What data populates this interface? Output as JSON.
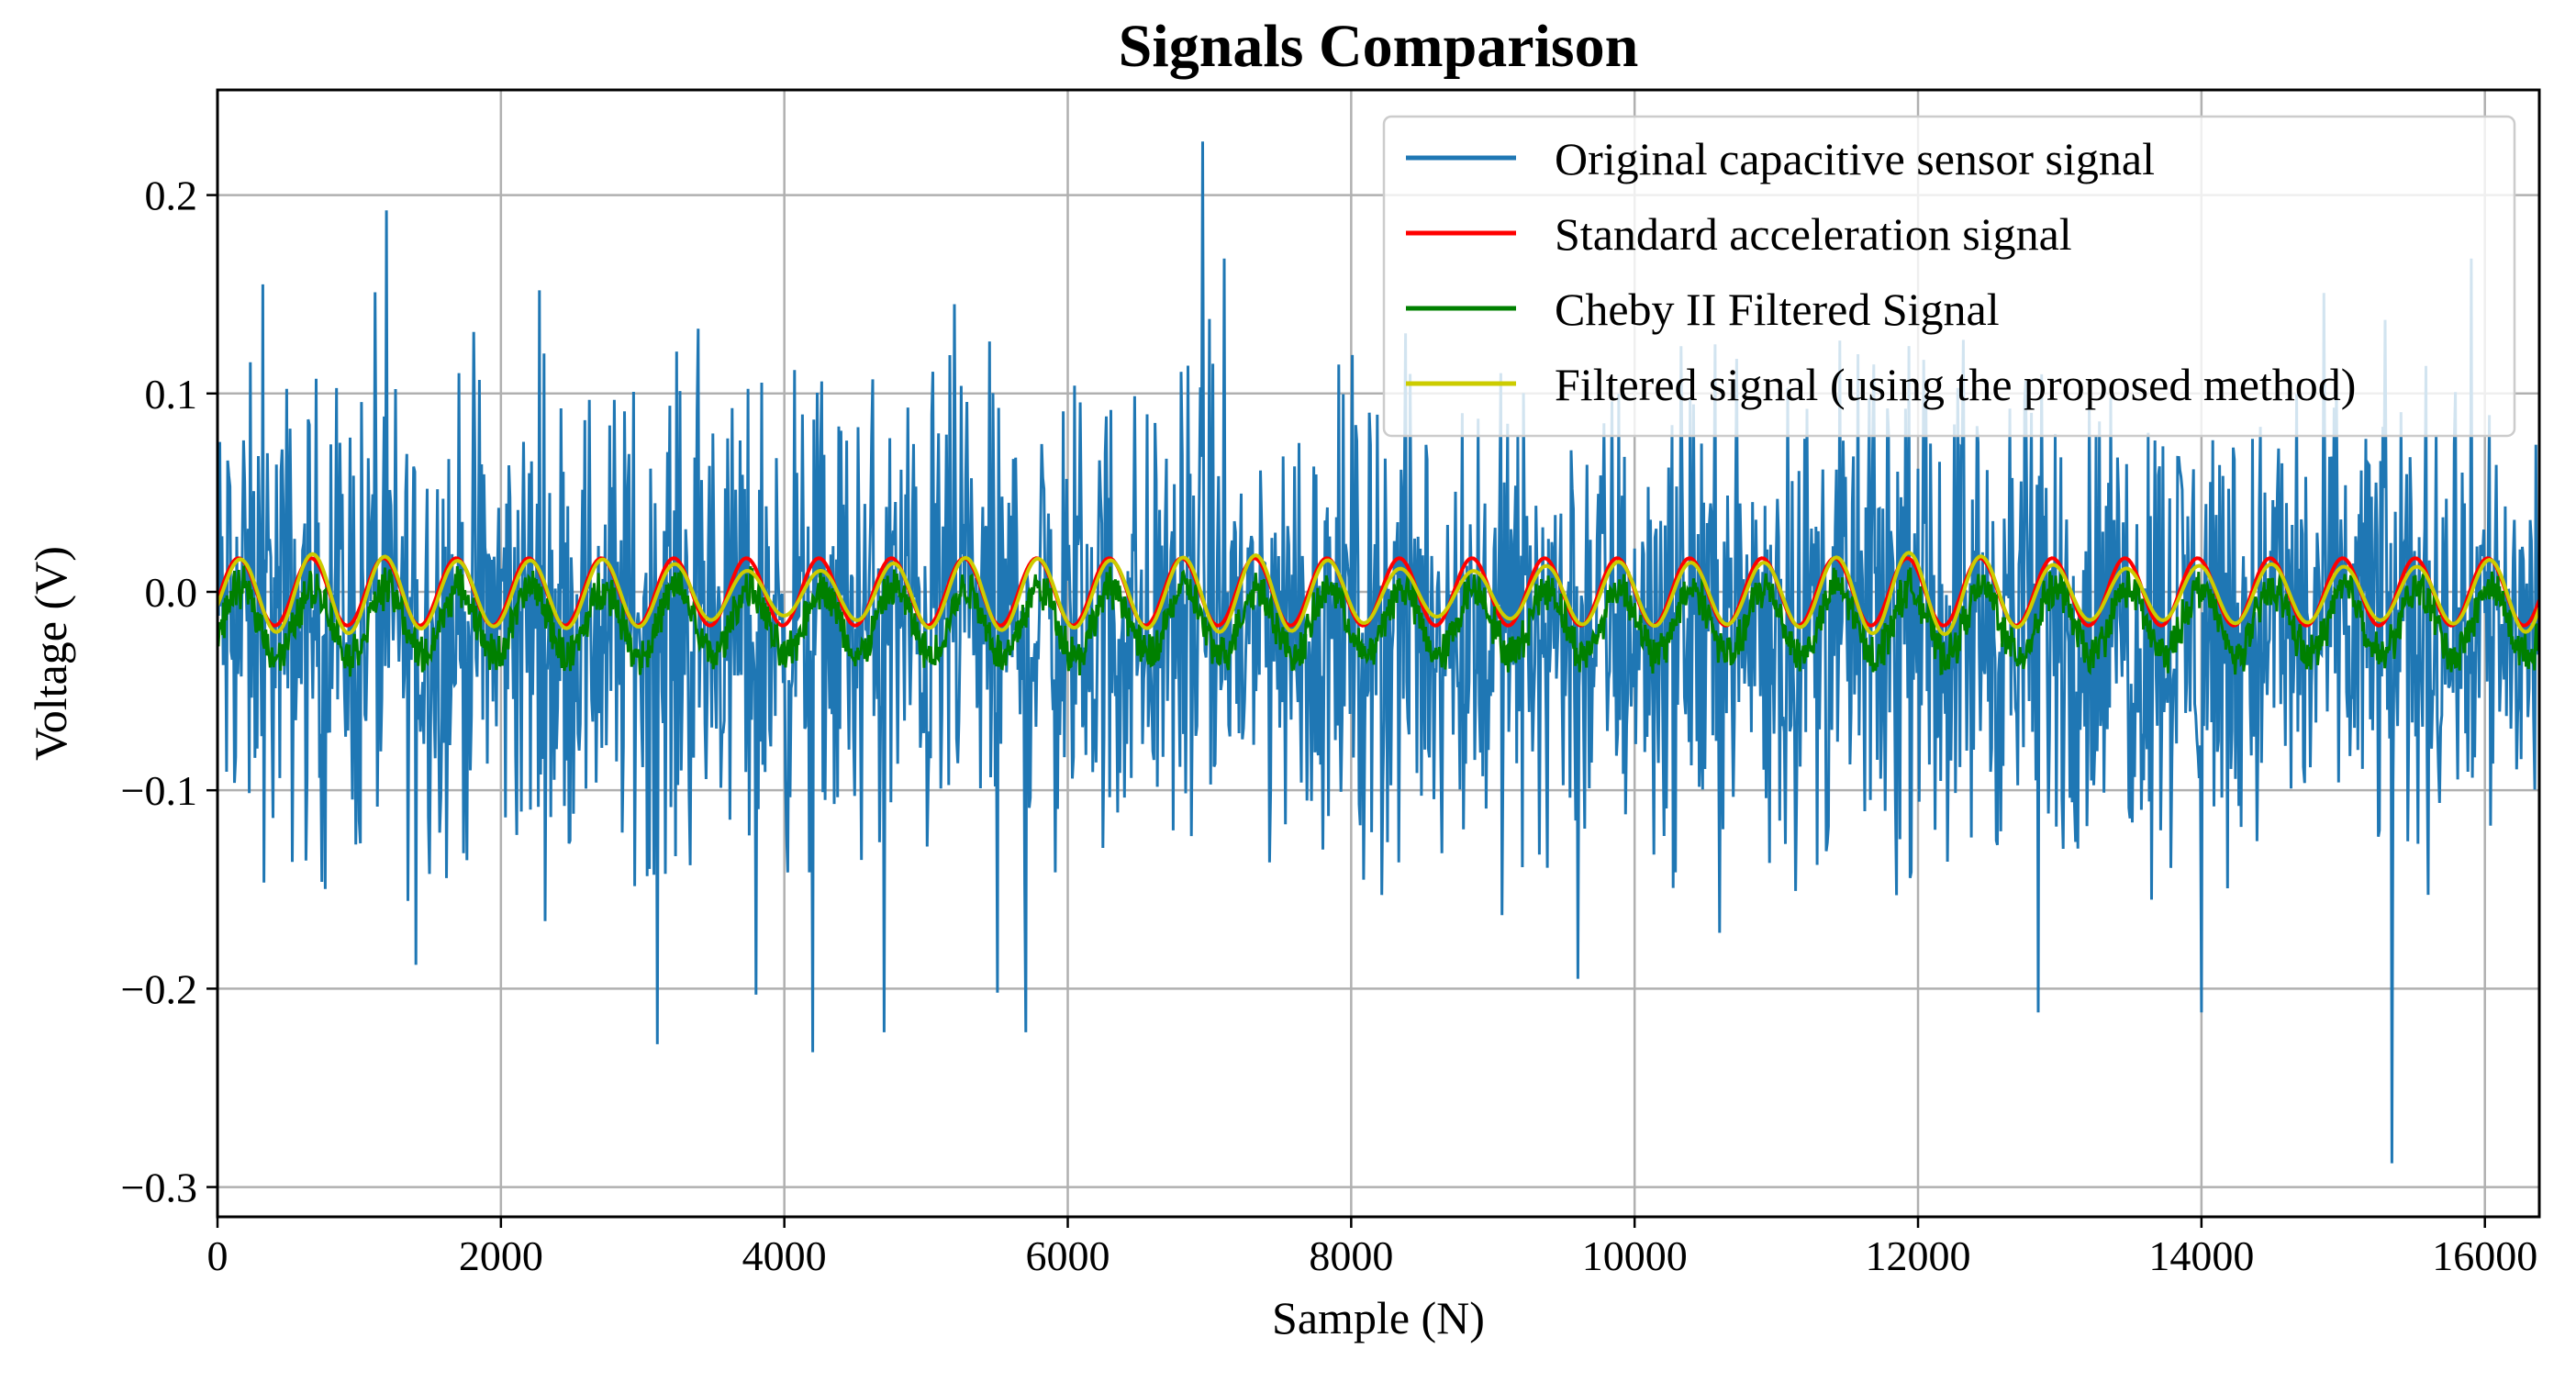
{
  "chart_data": {
    "type": "line",
    "title": "Signals Comparison",
    "xlabel": "Sample (N)",
    "ylabel": "Voltage (V)",
    "xlim": [
      0,
      16384
    ],
    "ylim": [
      -0.315,
      0.253
    ],
    "xticks": [
      0,
      2000,
      4000,
      6000,
      8000,
      10000,
      12000,
      14000,
      16000
    ],
    "xtick_labels": [
      "0",
      "2000",
      "4000",
      "6000",
      "8000",
      "10000",
      "12000",
      "14000",
      "16000"
    ],
    "yticks": [
      0.2,
      0.1,
      0.0,
      -0.1,
      -0.2,
      -0.3
    ],
    "ytick_labels": [
      "0.2",
      "0.1",
      "0.0",
      "−0.1",
      "−0.2",
      "−0.3"
    ],
    "grid": true,
    "legend_position": "top-right",
    "period_samples": 512,
    "series": [
      {
        "name": "Original capacitive sensor signal",
        "color": "#1f77b4",
        "description": "noisy signal, roughly uniform band between about -0.15 and 0.12 V",
        "band_low": -0.15,
        "band_high": 0.12,
        "spikes": [
          {
            "x": 6950,
            "y": 0.227
          },
          {
            "x": 15340,
            "y": -0.288
          },
          {
            "x": 4200,
            "y": -0.232
          },
          {
            "x": 3100,
            "y": -0.228
          },
          {
            "x": 4700,
            "y": -0.222
          },
          {
            "x": 5700,
            "y": -0.222
          },
          {
            "x": 1400,
            "y": -0.188
          },
          {
            "x": 3800,
            "y": -0.203
          },
          {
            "x": 5500,
            "y": -0.202
          },
          {
            "x": 12850,
            "y": -0.212
          },
          {
            "x": 14000,
            "y": -0.212
          },
          {
            "x": 9600,
            "y": -0.195
          },
          {
            "x": 320,
            "y": 0.155
          },
          {
            "x": 1110,
            "y": 0.151
          },
          {
            "x": 2270,
            "y": 0.152
          },
          {
            "x": 7100,
            "y": 0.168
          },
          {
            "x": 15900,
            "y": 0.168
          },
          {
            "x": 5200,
            "y": 0.145
          }
        ]
      },
      {
        "name": "Standard acceleration signal",
        "color": "#ff0000",
        "description": "clean sinusoid, amplitude about 0.017 V",
        "amplitude": 0.017,
        "offset": 0.0
      },
      {
        "name": "Cheby II Filtered Signal",
        "color": "#008000",
        "description": "noisy sinusoid centered around -0.015 V",
        "amplitude": 0.017,
        "offset": -0.015
      },
      {
        "name": "Filtered signal (using the proposed method)",
        "color": "#cccc00",
        "description": "smooth sinusoid, amplitude about 0.016 V",
        "amplitude": 0.016,
        "offset": -0.001
      }
    ]
  }
}
